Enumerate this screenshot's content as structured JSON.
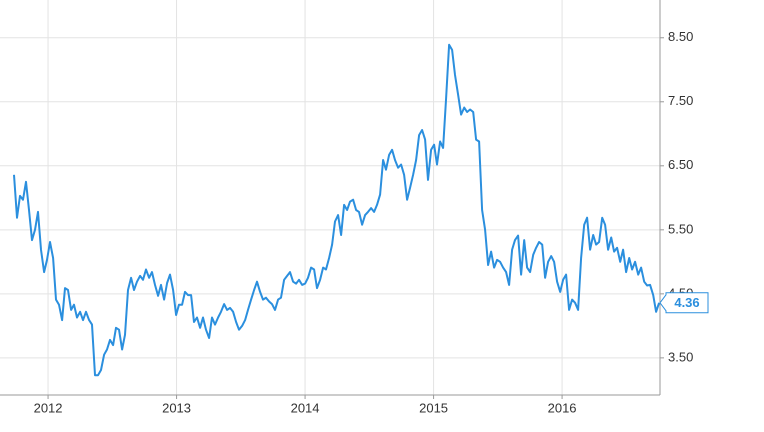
{
  "chart_data": {
    "type": "line",
    "x": [
      2011.735,
      2011.758,
      2011.782,
      2011.805,
      2011.828,
      2011.852,
      2011.875,
      2011.898,
      2011.922,
      2011.945,
      2011.969,
      2011.992,
      2012.015,
      2012.039,
      2012.062,
      2012.085,
      2012.109,
      2012.132,
      2012.155,
      2012.179,
      2012.202,
      2012.225,
      2012.249,
      2012.272,
      2012.295,
      2012.319,
      2012.342,
      2012.365,
      2012.389,
      2012.412,
      2012.436,
      2012.459,
      2012.482,
      2012.506,
      2012.529,
      2012.552,
      2012.576,
      2012.599,
      2012.622,
      2012.646,
      2012.669,
      2012.692,
      2012.716,
      2012.739,
      2012.762,
      2012.786,
      2012.809,
      2012.832,
      2012.856,
      2012.879,
      2012.903,
      2012.926,
      2012.949,
      2012.973,
      2012.996,
      2013.019,
      2013.043,
      2013.066,
      2013.089,
      2013.113,
      2013.136,
      2013.159,
      2013.183,
      2013.206,
      2013.229,
      2013.253,
      2013.276,
      2013.299,
      2013.323,
      2013.346,
      2013.37,
      2013.393,
      2013.416,
      2013.44,
      2013.463,
      2013.486,
      2013.51,
      2013.533,
      2013.556,
      2013.58,
      2013.603,
      2013.626,
      2013.65,
      2013.673,
      2013.696,
      2013.72,
      2013.743,
      2013.766,
      2013.79,
      2013.813,
      2013.837,
      2013.86,
      2013.883,
      2013.907,
      2013.93,
      2013.953,
      2013.977,
      2014,
      2014.023,
      2014.047,
      2014.07,
      2014.093,
      2014.117,
      2014.14,
      2014.163,
      2014.187,
      2014.21,
      2014.233,
      2014.257,
      2014.28,
      2014.304,
      2014.327,
      2014.35,
      2014.374,
      2014.397,
      2014.42,
      2014.444,
      2014.467,
      2014.49,
      2014.514,
      2014.537,
      2014.56,
      2014.584,
      2014.607,
      2014.63,
      2014.654,
      2014.677,
      2014.7,
      2014.724,
      2014.747,
      2014.771,
      2014.794,
      2014.817,
      2014.841,
      2014.864,
      2014.887,
      2014.911,
      2014.934,
      2014.957,
      2014.981,
      2015.004,
      2015.027,
      2015.051,
      2015.074,
      2015.097,
      2015.121,
      2015.144,
      2015.167,
      2015.191,
      2015.214,
      2015.238,
      2015.261,
      2015.284,
      2015.308,
      2015.331,
      2015.354,
      2015.378,
      2015.401,
      2015.424,
      2015.448,
      2015.471,
      2015.494,
      2015.518,
      2015.541,
      2015.564,
      2015.588,
      2015.611,
      2015.634,
      2015.658,
      2015.681,
      2015.705,
      2015.728,
      2015.751,
      2015.775,
      2015.798,
      2015.821,
      2015.845,
      2015.868,
      2015.891,
      2015.915,
      2015.938,
      2015.961,
      2015.985,
      2016.008,
      2016.031,
      2016.055,
      2016.078,
      2016.101,
      2016.125,
      2016.148,
      2016.172,
      2016.195,
      2016.218,
      2016.242,
      2016.265,
      2016.288,
      2016.312,
      2016.335,
      2016.358,
      2016.382,
      2016.405,
      2016.428,
      2016.452,
      2016.475,
      2016.498,
      2016.522,
      2016.545,
      2016.568,
      2016.592,
      2016.615,
      2016.639,
      2016.662,
      2016.685,
      2016.709,
      2016.732,
      2016.755
    ],
    "series": [
      {
        "color": "#2b8fde",
        "values": [
          6.36,
          5.69,
          6.03,
          5.97,
          6.25,
          5.81,
          5.34,
          5.5,
          5.78,
          5.19,
          4.84,
          5.03,
          5.31,
          5.06,
          4.41,
          4.33,
          4.09,
          4.59,
          4.56,
          4.25,
          4.33,
          4.13,
          4.22,
          4.09,
          4.22,
          4.09,
          4.02,
          3.23,
          3.23,
          3.31,
          3.55,
          3.63,
          3.78,
          3.7,
          3.97,
          3.94,
          3.63,
          3.86,
          4.56,
          4.75,
          4.56,
          4.69,
          4.78,
          4.72,
          4.88,
          4.75,
          4.84,
          4.64,
          4.47,
          4.64,
          4.41,
          4.67,
          4.8,
          4.56,
          4.17,
          4.33,
          4.33,
          4.53,
          4.48,
          4.48,
          4.06,
          4.13,
          3.97,
          4.13,
          3.94,
          3.81,
          4.13,
          4.02,
          4.13,
          4.22,
          4.34,
          4.25,
          4.28,
          4.22,
          4.06,
          3.94,
          4.0,
          4.09,
          4.25,
          4.41,
          4.56,
          4.69,
          4.53,
          4.41,
          4.44,
          4.38,
          4.34,
          4.25,
          4.41,
          4.44,
          4.72,
          4.78,
          4.84,
          4.69,
          4.66,
          4.72,
          4.64,
          4.66,
          4.75,
          4.91,
          4.88,
          4.59,
          4.72,
          4.91,
          4.88,
          5.06,
          5.27,
          5.63,
          5.73,
          5.42,
          5.89,
          5.81,
          5.94,
          5.97,
          5.81,
          5.78,
          5.58,
          5.73,
          5.78,
          5.84,
          5.78,
          5.89,
          6.05,
          6.59,
          6.44,
          6.67,
          6.75,
          6.59,
          6.47,
          6.52,
          6.36,
          5.97,
          6.16,
          6.36,
          6.59,
          6.98,
          7.06,
          6.91,
          6.28,
          6.75,
          6.83,
          6.52,
          6.88,
          6.78,
          7.53,
          8.39,
          8.31,
          7.92,
          7.61,
          7.3,
          7.41,
          7.34,
          7.38,
          7.34,
          6.91,
          6.88,
          5.81,
          5.5,
          4.95,
          5.16,
          4.91,
          5.03,
          5.0,
          4.91,
          4.84,
          4.64,
          5.19,
          5.34,
          5.41,
          4.8,
          5.34,
          4.91,
          4.84,
          5.11,
          5.22,
          5.31,
          5.27,
          4.75,
          5.0,
          5.09,
          5.0,
          4.69,
          4.53,
          4.72,
          4.8,
          4.25,
          4.41,
          4.36,
          4.25,
          5.06,
          5.58,
          5.69,
          5.19,
          5.42,
          5.27,
          5.31,
          5.69,
          5.58,
          5.19,
          5.38,
          5.16,
          5.22,
          5.0,
          5.19,
          4.84,
          5.06,
          4.88,
          5.0,
          4.8,
          4.91,
          4.69,
          4.63,
          4.64,
          4.48,
          4.22,
          4.36
        ]
      }
    ],
    "xlim": [
      2011.626,
      2016.762
    ],
    "xticks": [
      2012,
      2013,
      2014,
      2015,
      2016
    ],
    "ylim": [
      2.92,
      9.09
    ],
    "yticks": [
      {
        "value": 3.5,
        "label": "3.50"
      },
      {
        "value": 4.5,
        "label": "4.50"
      },
      {
        "value": 5.5,
        "label": "5.50"
      },
      {
        "value": 6.5,
        "label": "6.50"
      },
      {
        "value": 7.5,
        "label": "7.50"
      },
      {
        "value": 8.5,
        "label": "8.50"
      }
    ],
    "grid": true,
    "y_axis_side": "right"
  }
}
